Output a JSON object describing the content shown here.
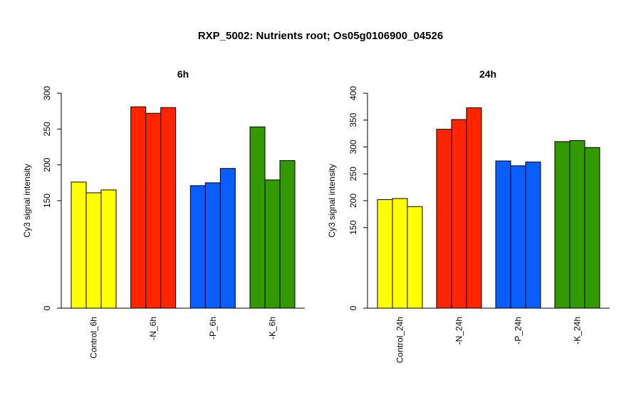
{
  "figure": {
    "title": "RXP_5002: Nutrients root; Os05g0106900_04526"
  },
  "chart_data": [
    {
      "type": "bar",
      "title": "6h",
      "ylabel": "Cy3 signal intensity",
      "xlabel": "",
      "ylim": [
        0,
        300
      ],
      "yticks": [
        0,
        150,
        200,
        250,
        300
      ],
      "grid": false,
      "groups": [
        {
          "label": "Control_6h",
          "color": "#FFFF00",
          "values": [
            176,
            161,
            165
          ]
        },
        {
          "label": "-N_6h",
          "color": "#FF2500",
          "values": [
            281,
            272,
            280
          ]
        },
        {
          "label": "-P_6h",
          "color": "#0A5EFF",
          "values": [
            171,
            175,
            195
          ]
        },
        {
          "label": "-K_6h",
          "color": "#339900",
          "values": [
            253,
            179,
            206
          ]
        }
      ]
    },
    {
      "type": "bar",
      "title": "24h",
      "ylabel": "Cy3 signal intensity",
      "xlabel": "",
      "ylim": [
        0,
        400
      ],
      "yticks": [
        0,
        150,
        200,
        250,
        300,
        350,
        400
      ],
      "grid": false,
      "groups": [
        {
          "label": "Control_24h",
          "color": "#FFFF00",
          "values": [
            202,
            204,
            189
          ]
        },
        {
          "label": "-N_24h",
          "color": "#FF2500",
          "values": [
            333,
            351,
            373
          ]
        },
        {
          "label": "-P_24h",
          "color": "#0A5EFF",
          "values": [
            274,
            265,
            272
          ]
        },
        {
          "label": "-K_24h",
          "color": "#339900",
          "values": [
            310,
            312,
            299
          ]
        }
      ]
    }
  ]
}
